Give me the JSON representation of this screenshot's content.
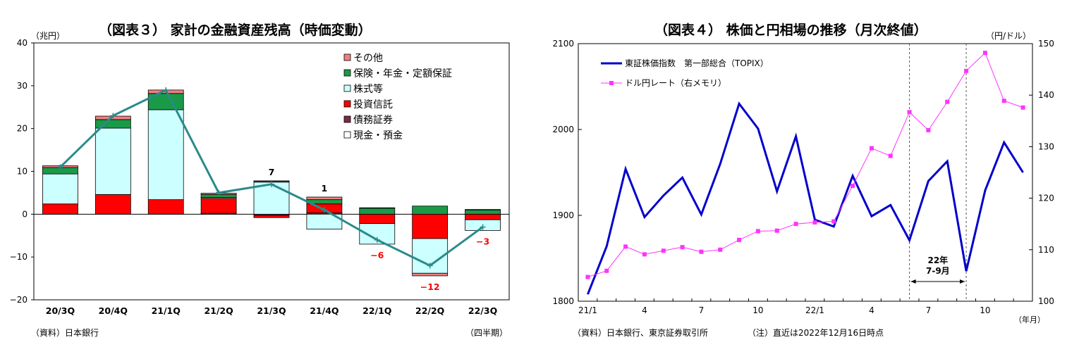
{
  "left": {
    "title": "（図表３） 家計の金融資産残高（時価変動）",
    "yunit": "（兆円）",
    "source": "（資料）日本銀行",
    "xnote": "（四半期）"
  },
  "right": {
    "title": "（図表４） 株価と円相場の推移（月次終値）",
    "right_unit": "（円/ドル）",
    "xunit": "（年月）",
    "source": "（資料）日本銀行、東京証券取引所",
    "note": "（注）直近は2022年12月16日時点",
    "span_label_1": "22年",
    "span_label_2": "7-9月"
  },
  "colors": {
    "other": "#f08080",
    "insurance": "#1a9a48",
    "stocks": "#ccffff",
    "trusts": "#ff0000",
    "bonds": "#7a2a4a",
    "cash": "#ffffff",
    "total_line": "#2a8a8a",
    "topix": "#0000cc",
    "usdjpy": "#ff33ff",
    "negative_label": "#ff0000"
  },
  "chart_data": [
    {
      "type": "bar",
      "stacked": true,
      "title": "（図表３） 家計の金融資産残高（時価変動）",
      "ylabel": "（兆円）",
      "ylim": [
        -20,
        40
      ],
      "yticks": [
        -20,
        -10,
        0,
        10,
        20,
        30,
        40
      ],
      "categories": [
        "20/3Q",
        "20/4Q",
        "21/1Q",
        "21/2Q",
        "21/3Q",
        "21/4Q",
        "22/1Q",
        "22/2Q",
        "22/3Q"
      ],
      "legend_position": "top-right",
      "series": [
        {
          "name": "その他",
          "key": "other",
          "values": [
            0.4,
            0.8,
            0.8,
            0.3,
            0.2,
            0.6,
            0.1,
            -0.6,
            0.1
          ]
        },
        {
          "name": "保険・年金・定額保証",
          "key": "insurance",
          "values": [
            1.5,
            2.0,
            3.8,
            0.7,
            0.1,
            1.0,
            1.4,
            1.9,
            1.0
          ]
        },
        {
          "name": "株式等",
          "key": "stocks",
          "values": [
            7.0,
            15.5,
            21.0,
            0.2,
            7.5,
            -3.5,
            -4.8,
            -8.1,
            -2.5
          ]
        },
        {
          "name": "投資信託",
          "key": "trusts",
          "values": [
            2.4,
            4.6,
            3.4,
            3.5,
            -0.5,
            2.1,
            -2.2,
            -5.7,
            -1.3
          ]
        },
        {
          "name": "債務証券",
          "key": "bonds",
          "values": [
            0.0,
            0.0,
            0.0,
            0.2,
            -0.3,
            0.3,
            0.0,
            0.0,
            0.0
          ]
        },
        {
          "name": "現金・預金",
          "key": "cash",
          "values": [
            0.0,
            0.0,
            0.0,
            0.0,
            0.0,
            0.0,
            0.0,
            0.0,
            0.0
          ]
        }
      ],
      "total": [
        11,
        23,
        29,
        5,
        7,
        1,
        -6,
        -12,
        -3
      ],
      "data_labels": [
        {
          "index": 4,
          "text": "7",
          "negative": false
        },
        {
          "index": 5,
          "text": "1",
          "negative": false
        },
        {
          "index": 6,
          "text": "−6",
          "negative": true
        },
        {
          "index": 7,
          "text": "−12",
          "negative": true
        },
        {
          "index": 8,
          "text": "−3",
          "negative": true
        }
      ]
    },
    {
      "type": "line",
      "title": "（図表４） 株価と円相場の推移（月次終値）",
      "x": [
        "21/1",
        "21/2",
        "21/3",
        "21/4",
        "21/5",
        "21/6",
        "21/7",
        "21/8",
        "21/9",
        "21/10",
        "21/11",
        "21/12",
        "22/1",
        "22/2",
        "22/3",
        "22/4",
        "22/5",
        "22/6",
        "22/7",
        "22/8",
        "22/9",
        "22/10",
        "22/11",
        "22/12"
      ],
      "xtick_labels": [
        "21/1",
        "4",
        "7",
        "10",
        "22/1",
        "4",
        "7",
        "10"
      ],
      "xtick_indices": [
        0,
        3,
        6,
        9,
        12,
        15,
        18,
        21
      ],
      "xlabel": "（年月）",
      "ylim_left": [
        1800,
        2100
      ],
      "yticks_left": [
        1800,
        1900,
        2000,
        2100
      ],
      "ylim_right": [
        100,
        150
      ],
      "yticks_right": [
        100,
        110,
        120,
        130,
        140,
        150
      ],
      "ylabel_right": "（円/ドル）",
      "legend_position": "top-left",
      "shaded_span": [
        17,
        20
      ],
      "series": [
        {
          "name": "東証株価指数　第一部総合（TOPIX）",
          "axis": "left",
          "marker": "none",
          "values": [
            1808,
            1864,
            1954,
            1898,
            1923,
            1944,
            1901,
            1960,
            2030,
            2001,
            1928,
            1992,
            1895,
            1887,
            1946,
            1899,
            1912,
            1871,
            1940,
            1963,
            1835,
            1929,
            1985,
            1950
          ]
        },
        {
          "name": "ドル円レート（右メモリ）",
          "axis": "right",
          "marker": "square",
          "values": [
            104.7,
            105.9,
            110.6,
            109.1,
            109.8,
            110.5,
            109.6,
            110.0,
            111.9,
            113.6,
            113.7,
            115.0,
            115.3,
            115.5,
            122.4,
            129.7,
            128.2,
            136.7,
            133.2,
            138.7,
            144.7,
            148.2,
            138.9,
            137.6
          ]
        }
      ]
    }
  ]
}
